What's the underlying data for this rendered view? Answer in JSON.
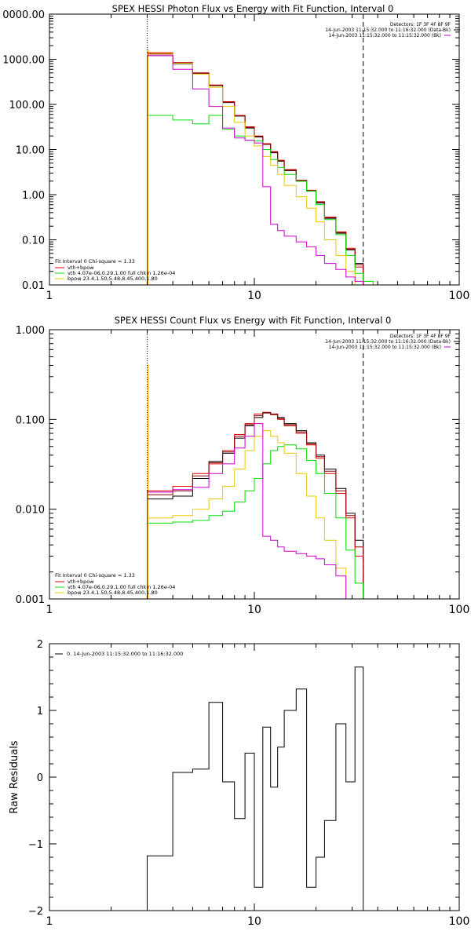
{
  "colors": {
    "axes": "#000000",
    "data": "#000000",
    "fit_total": "#e00000",
    "vth": "#00dd00",
    "bpow": "#e8c800",
    "bk": "#cc00cc",
    "model_line": "#8b0000",
    "marker_low": "#ffa500"
  },
  "chart_data": [
    {
      "type": "line",
      "title": "SPEX HESSI Photon Flux vs Energy with Fit Function, Interval 0",
      "xlabel": "",
      "ylabel": "",
      "xscale": "log",
      "yscale": "log",
      "xlim": [
        1,
        100
      ],
      "ylim": [
        0.01,
        10000
      ],
      "xtick_labels": [
        "1",
        "10",
        "100"
      ],
      "ytick_labels": [
        "0.01",
        "0.10",
        "1.00",
        "10.00",
        "100.00",
        "1000.00",
        "0000.00"
      ],
      "vlines": {
        "dotted": 3,
        "dashed": 34
      },
      "header_lines": [
        "Detectors: 1F 3F 4F 8F 9F",
        "14-Jun-2003 11:15:32.000 to 11:16:32.000 (Data-Bk)",
        "14-Jun-2003 11:15:32.000 to 11:15:32.000 (Bk)"
      ],
      "legend": {
        "title": "Fit Interval 0   Chi-square = 1.33",
        "entries": [
          {
            "label": "vth+bpow",
            "color": "#e00000"
          },
          {
            "label": "vth 4.07e-06,0.29,1.00  full chkin 1.26e-04",
            "color": "#00dd00"
          },
          {
            "label": "bpow 23.4,1.50,5.48,8.45,400,1.80",
            "color": "#e8c800"
          }
        ]
      },
      "edges": [
        3,
        4,
        5,
        6,
        7,
        8,
        9,
        10,
        11,
        12,
        13,
        14,
        16,
        18,
        20,
        22,
        25,
        28,
        31,
        34,
        38
      ],
      "series": [
        {
          "color": "#000000",
          "values": [
            1200,
            800,
            480,
            260,
            110,
            55,
            30,
            19,
            13,
            8.5,
            5.5,
            3.4,
            2.0,
            1.2,
            0.65,
            0.3,
            0.14,
            0.06,
            0.03,
            null
          ]
        },
        {
          "color": "#e00000",
          "values": [
            1400,
            850,
            500,
            270,
            115,
            57,
            32,
            20,
            13.5,
            9,
            5.8,
            3.6,
            2.1,
            1.25,
            0.7,
            0.32,
            0.15,
            0.065,
            0.025,
            null
          ]
        },
        {
          "color": "#8b0000",
          "values": [
            1300,
            830,
            490,
            265,
            112,
            56,
            31,
            19.5,
            13.2,
            8.7,
            5.6,
            3.5,
            2.05,
            1.22,
            0.68,
            0.31,
            0.145,
            0.062,
            0.028,
            null
          ]
        },
        {
          "color": "#00dd00",
          "values": [
            57,
            45,
            37,
            57,
            28,
            20,
            16,
            15.5,
            10,
            6,
            4,
            2.8,
            2.0,
            1.2,
            0.6,
            0.28,
            0.13,
            0.045,
            0.018,
            0.012
          ]
        },
        {
          "color": "#e8c800",
          "values": [
            1350,
            820,
            470,
            240,
            90,
            40,
            20,
            12,
            7,
            4.5,
            2.8,
            1.6,
            0.9,
            0.5,
            0.25,
            0.1,
            0.045,
            0.02,
            0.01,
            null
          ]
        },
        {
          "color": "#cc00cc",
          "values": [
            1200,
            600,
            220,
            90,
            30,
            18,
            16,
            14,
            1.5,
            0.22,
            0.16,
            0.12,
            0.09,
            0.07,
            0.045,
            0.03,
            0.022,
            0.015,
            0.012,
            null
          ]
        }
      ]
    },
    {
      "type": "line",
      "title": "SPEX HESSI Count Flux vs Energy with Fit Function, Interval 0",
      "xlabel": "",
      "ylabel": "",
      "xscale": "log",
      "yscale": "log",
      "xlim": [
        1,
        100
      ],
      "ylim": [
        0.001,
        1.0
      ],
      "xtick_labels": [
        "1",
        "10",
        "100"
      ],
      "ytick_labels": [
        "0.001",
        "0.010",
        "0.100",
        "1.000"
      ],
      "vlines": {
        "dotted": 3,
        "dashed": 34
      },
      "header_lines": [
        "Detectors: 1F 3F 4F 8F 9F",
        "14-Jun-2003 11:15:32.000 to 11:16:32.000 (Data-Bk)",
        "14-Jun-2003 11:15:32.000 to 11:15:32.000 (Bk)"
      ],
      "legend": {
        "title": "Fit Interval 0   Chi-square = 1.33",
        "entries": [
          {
            "label": "vth+bpow",
            "color": "#e00000"
          },
          {
            "label": "vth 4.07e-06,0.29,1.00  full chkin 1.26e-04",
            "color": "#00dd00"
          },
          {
            "label": "bpow 23.4,1.50,5.48,8.45,400,1.80",
            "color": "#e8c800"
          }
        ]
      },
      "edges": [
        3,
        4,
        5,
        6,
        7,
        8,
        9,
        10,
        11,
        12,
        13,
        14,
        16,
        18,
        20,
        22,
        25,
        28,
        31,
        34,
        38
      ],
      "series": [
        {
          "color": "#000000",
          "values": [
            0.013,
            0.014,
            0.022,
            0.034,
            0.042,
            0.062,
            0.085,
            0.105,
            0.118,
            0.115,
            0.105,
            0.09,
            0.075,
            0.055,
            0.04,
            0.028,
            0.017,
            0.009,
            0.0045,
            0.001
          ]
        },
        {
          "color": "#e00000",
          "values": [
            0.016,
            0.018,
            0.025,
            0.032,
            0.045,
            0.068,
            0.09,
            0.115,
            0.12,
            0.113,
            0.1,
            0.085,
            0.07,
            0.052,
            0.037,
            0.025,
            0.015,
            0.008,
            0.003,
            null
          ]
        },
        {
          "color": "#8b0000",
          "values": [
            0.0145,
            0.016,
            0.0235,
            0.033,
            0.0435,
            0.065,
            0.0875,
            0.11,
            0.119,
            0.114,
            0.1025,
            0.0875,
            0.0725,
            0.0535,
            0.0385,
            0.0265,
            0.016,
            0.0085,
            0.0038,
            null
          ]
        },
        {
          "color": "#00dd00",
          "values": [
            0.007,
            0.0072,
            0.0075,
            0.0085,
            0.0095,
            0.012,
            0.016,
            0.022,
            0.032,
            0.045,
            0.05,
            0.052,
            0.047,
            0.035,
            0.025,
            0.015,
            0.008,
            0.0035,
            0.0015,
            0.0009
          ]
        },
        {
          "color": "#e8c800",
          "values": [
            0.008,
            0.0085,
            0.01,
            0.013,
            0.018,
            0.028,
            0.045,
            0.065,
            0.075,
            0.065,
            0.055,
            0.042,
            0.025,
            0.014,
            0.008,
            0.0045,
            0.0022,
            0.001,
            null,
            null
          ]
        },
        {
          "color": "#cc00cc",
          "values": [
            0.0155,
            0.0165,
            0.0175,
            0.025,
            0.032,
            0.048,
            0.065,
            0.09,
            0.005,
            0.0045,
            0.0038,
            0.0034,
            0.0032,
            0.003,
            0.0028,
            0.0024,
            0.0018,
            null,
            null,
            null
          ]
        }
      ]
    },
    {
      "type": "line",
      "title": "",
      "xlabel": "",
      "ylabel": "Raw Residuals",
      "xscale": "log",
      "yscale": "linear",
      "xlim": [
        1,
        100
      ],
      "ylim": [
        -2,
        2
      ],
      "xtick_labels": [
        "1",
        "10",
        "100"
      ],
      "ytick_labels": [
        "−2",
        "−1",
        "0",
        "1",
        "2"
      ],
      "legend": {
        "title": "",
        "entries": [
          {
            "label": "0. 14-Jun-2003 11:15:32.000 to 11:16:32.000",
            "color": "#000000"
          }
        ]
      },
      "edges": [
        3,
        4,
        5,
        6,
        7,
        8,
        9,
        10,
        11,
        12,
        13,
        14,
        16,
        18,
        20,
        22,
        25,
        28,
        31,
        34
      ],
      "series": [
        {
          "color": "#000000",
          "values": [
            -1.18,
            0.07,
            0.12,
            1.12,
            -0.07,
            -0.62,
            0.36,
            -1.65,
            0.75,
            -0.15,
            0.45,
            1.0,
            1.32,
            -1.65,
            -1.2,
            -0.65,
            0.8,
            -0.07,
            1.65
          ]
        }
      ]
    }
  ]
}
